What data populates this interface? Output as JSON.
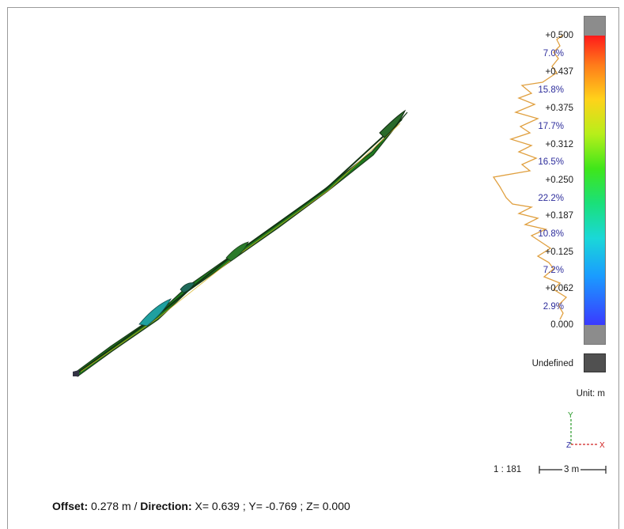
{
  "legend": {
    "ticks": [
      "+0.500",
      "+0.437",
      "+0.375",
      "+0.312",
      "+0.250",
      "+0.187",
      "+0.125",
      "+0.062",
      "0.000"
    ],
    "percentages": [
      "7.0%",
      "15.8%",
      "17.7%",
      "16.5%",
      "22.2%",
      "10.8%",
      "7.2%",
      "2.9%"
    ],
    "undefined_label": "Undefined",
    "unit_label": "Unit: m",
    "colors": {
      "max": "#ff1a1a",
      "min": "#3a3aff",
      "undefined": "#505050",
      "out_of_range": "#8c8c8c",
      "histogram": "#e0a040"
    }
  },
  "axes": {
    "y_label": "Y",
    "z_label": "Z",
    "x_label": "X"
  },
  "scale": {
    "ratio": "1 : 181",
    "length": "3 m"
  },
  "status": {
    "offset_label": "Offset:",
    "offset_value": " 0.278 m / ",
    "direction_label": "Direction:",
    "direction_value": " X= 0.639 ; Y= -0.769 ; Z= 0.000"
  }
}
